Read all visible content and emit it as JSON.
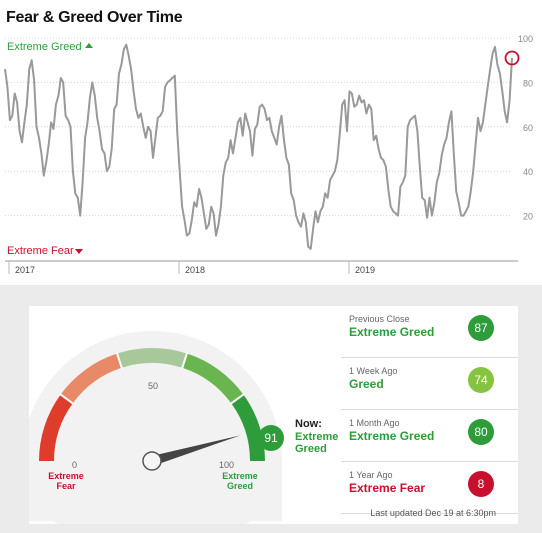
{
  "title": "Fear & Greed Over Time",
  "chart_data": {
    "type": "line",
    "x_ticks": [
      "2017",
      "2018",
      "2019"
    ],
    "y_ticks": [
      20,
      40,
      60,
      80,
      100
    ],
    "ylim": [
      0,
      100
    ],
    "top_label": "Extreme Greed",
    "bottom_label": "Extreme Fear",
    "series": [
      {
        "values": [
          86,
          78,
          63,
          65,
          75,
          71,
          58,
          53,
          62,
          70,
          86,
          90,
          81,
          60,
          55,
          48,
          38,
          44,
          52,
          62,
          59,
          70,
          74,
          82,
          80,
          65,
          63,
          60,
          40,
          30,
          28,
          20,
          35,
          55,
          62,
          73,
          80,
          74,
          64,
          58,
          50,
          48,
          40,
          42,
          50,
          68,
          70,
          84,
          88,
          95,
          97,
          92,
          86,
          76,
          68,
          64,
          66,
          60,
          55,
          60,
          58,
          46,
          55,
          64,
          65,
          67,
          78,
          80,
          81,
          82,
          83,
          58,
          40,
          24,
          18,
          11,
          12,
          18,
          26,
          24,
          32,
          28,
          21,
          14,
          16,
          24,
          21,
          11,
          16,
          24,
          38,
          44,
          46,
          54,
          48,
          55,
          62,
          64,
          56,
          66,
          62,
          58,
          47,
          59,
          61,
          69,
          70,
          68,
          63,
          64,
          58,
          55,
          52,
          60,
          65,
          54,
          46,
          43,
          30,
          27,
          20,
          17,
          15,
          21,
          17,
          6,
          5,
          14,
          22,
          17,
          22,
          24,
          30,
          28,
          36,
          38,
          40,
          45,
          57,
          70,
          72,
          58,
          76,
          75,
          69,
          70,
          74,
          71,
          72,
          66,
          70,
          68,
          54,
          56,
          50,
          46,
          45,
          42,
          32,
          24,
          22,
          21,
          20,
          33,
          35,
          38,
          60,
          63,
          64,
          65,
          58,
          42,
          28,
          27,
          19,
          28,
          20,
          26,
          35,
          39,
          47,
          52,
          55,
          62,
          67,
          48,
          31,
          26,
          20,
          20,
          22,
          24,
          31,
          40,
          52,
          64,
          58,
          62,
          70,
          78,
          86,
          93,
          96,
          88,
          84,
          76,
          67,
          62,
          72,
          91
        ]
      }
    ]
  },
  "gauge": {
    "value": 91,
    "scale_min": "0",
    "scale_mid": "50",
    "scale_max": "100",
    "left_label": "Extreme Fear",
    "right_label": "Extreme Greed",
    "now_prefix": "Now:",
    "now_rating": "Extreme Greed"
  },
  "history": [
    {
      "label": "Previous Close",
      "rating": "Extreme Greed",
      "value": "87",
      "color": "#2e9c3b"
    },
    {
      "label": "1 Week Ago",
      "rating": "Greed",
      "value": "74",
      "color": "#85c341"
    },
    {
      "label": "1 Month Ago",
      "rating": "Extreme Greed",
      "value": "80",
      "color": "#2e9c3b"
    },
    {
      "label": "1 Year Ago",
      "rating": "Extreme Fear",
      "value": "8",
      "color": "#c8102e"
    }
  ],
  "updated": "Last updated Dec 19 at 6:30pm",
  "colors": {
    "greed": "#2e9c3b",
    "fear": "#c8102e",
    "line": "#999999"
  }
}
